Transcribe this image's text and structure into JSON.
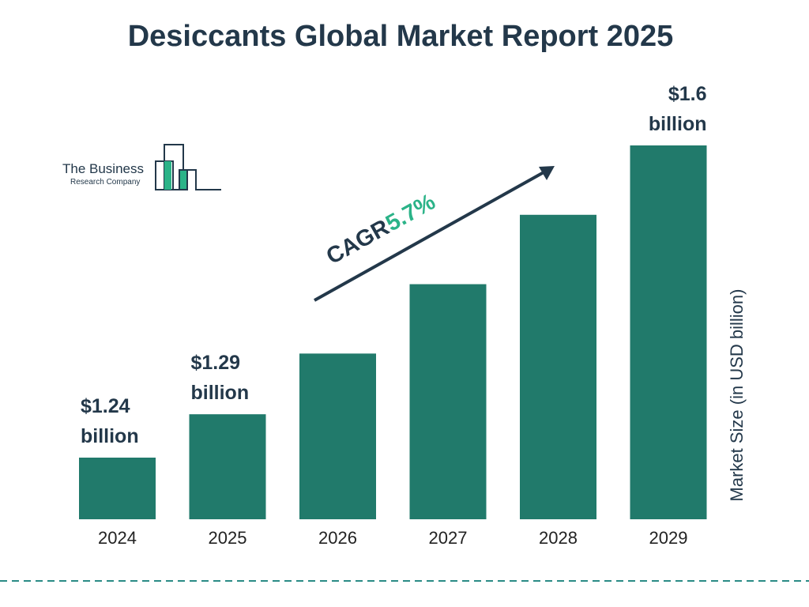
{
  "chart_data": {
    "type": "bar",
    "title": "Desiccants Global Market Report 2025",
    "categories": [
      "2024",
      "2025",
      "2026",
      "2027",
      "2028",
      "2029"
    ],
    "values": [
      1.24,
      1.29,
      1.36,
      1.44,
      1.52,
      1.6
    ],
    "value_labels": [
      "$1.24 billion",
      "$1.29 billion",
      null,
      null,
      null,
      "$1.6 billion"
    ],
    "color": "#217a6b",
    "y_axis_label": "Market Size (in USD billion)",
    "annotation": {
      "label": "CAGR",
      "value": "5.7%"
    }
  },
  "logo": {
    "line1": "The Business",
    "line2": "Research Company"
  }
}
